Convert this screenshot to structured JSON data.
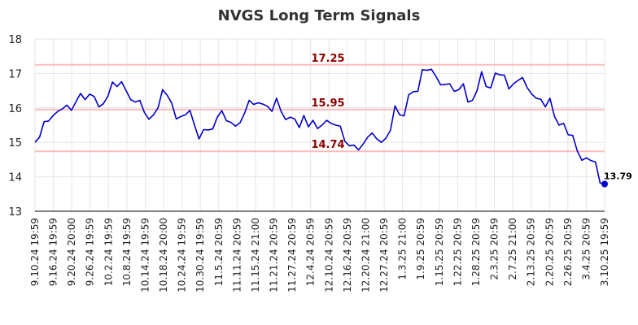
{
  "chart_data": {
    "type": "line",
    "title": "NVGS Long Term Signals",
    "xlabel": "",
    "ylabel": "",
    "ylim": [
      13,
      18
    ],
    "yticks": [
      13,
      14,
      15,
      16,
      17,
      18
    ],
    "grid": true,
    "x_tick_labels": [
      "9.10.24 19:59",
      "9.16.24 19:59",
      "9.20.24 20:00",
      "9.26.24 19:59",
      "10.2.24 19:59",
      "10.8.24 19:59",
      "10.14.24 19:59",
      "10.18.24 20:00",
      "10.24.24 19:59",
      "10.30.24 19:59",
      "11.5.24 20:59",
      "11.11.24 20:59",
      "11.15.24 21:00",
      "11.21.24 20:59",
      "11.27.24 20:59",
      "12.4.24 20:59",
      "12.10.24 20:59",
      "12.16.24 20:59",
      "12.20.24 21:00",
      "12.27.24 20:59",
      "1.3.25 21:00",
      "1.9.25 20:59",
      "1.15.25 20:59",
      "1.22.25 20:59",
      "1.28.25 20:59",
      "2.3.25 20:59",
      "2.7.25 21:00",
      "2.13.25 20:59",
      "2.20.25 20:59",
      "2.26.25 20:59",
      "3.4.25 20:59",
      "3.10.25 19:59"
    ],
    "reference_lines": [
      {
        "value": 17.25,
        "label": "17.25"
      },
      {
        "value": 15.95,
        "label": "15.95"
      },
      {
        "value": 14.74,
        "label": "14.74"
      }
    ],
    "last_value_label": "13.79",
    "line_color": "#0000cc",
    "ref_line_color": "#ffbbbb",
    "ref_label_color": "#8b0000",
    "series": [
      {
        "values": [
          15.0,
          15.15,
          15.6,
          15.62,
          15.78,
          15.9,
          15.97,
          16.08,
          15.93,
          16.18,
          16.42,
          16.24,
          16.4,
          16.33,
          16.03,
          16.12,
          16.34,
          16.75,
          16.62,
          16.76,
          16.5,
          16.24,
          16.17,
          16.22,
          15.87,
          15.67,
          15.8,
          16.0,
          16.53,
          16.37,
          16.14,
          15.68,
          15.75,
          15.8,
          15.93,
          15.5,
          15.1,
          15.37,
          15.36,
          15.39,
          15.73,
          15.92,
          15.63,
          15.58,
          15.47,
          15.57,
          15.85,
          16.22,
          16.1,
          16.15,
          16.11,
          16.05,
          15.9,
          16.28,
          15.9,
          15.66,
          15.73,
          15.68,
          15.43,
          15.78,
          15.45,
          15.64,
          15.4,
          15.5,
          15.64,
          15.55,
          15.5,
          15.47,
          15.03,
          14.9,
          14.92,
          14.78,
          14.95,
          15.15,
          15.27,
          15.1,
          15.0,
          15.12,
          15.35,
          16.06,
          15.8,
          15.77,
          16.38,
          16.47,
          16.48,
          17.11,
          17.09,
          17.12,
          16.91,
          16.67,
          16.68,
          16.7,
          16.48,
          16.53,
          16.7,
          16.17,
          16.22,
          16.5,
          17.05,
          16.62,
          16.58,
          17.01,
          16.96,
          16.95,
          16.55,
          16.7,
          16.8,
          16.88,
          16.59,
          16.4,
          16.28,
          16.25,
          16.03,
          16.28,
          15.75,
          15.5,
          15.55,
          15.22,
          15.2,
          14.75,
          14.48,
          14.55,
          14.47,
          14.43,
          13.82,
          13.79
        ]
      }
    ]
  }
}
